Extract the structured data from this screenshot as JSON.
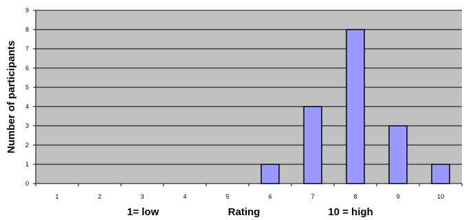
{
  "chart_data": {
    "type": "bar",
    "categories": [
      "1",
      "2",
      "3",
      "4",
      "5",
      "6",
      "7",
      "8",
      "9",
      "10"
    ],
    "values": [
      0,
      0,
      0,
      0,
      0,
      1,
      4,
      8,
      3,
      1
    ],
    "ylabel": "Number of participants",
    "xlabel_parts": [
      "1= low",
      "Rating",
      "10 = high"
    ],
    "ylim": [
      0,
      9
    ],
    "yticks": [
      "0",
      "1",
      "2",
      "3",
      "4",
      "5",
      "6",
      "7",
      "8",
      "9"
    ],
    "grid": true,
    "legend": "none",
    "colors": {
      "bar_fill": "#9999ff",
      "bar_stroke": "#000000",
      "plot_background": "#c0c0c0",
      "gridline": "#000000"
    }
  }
}
